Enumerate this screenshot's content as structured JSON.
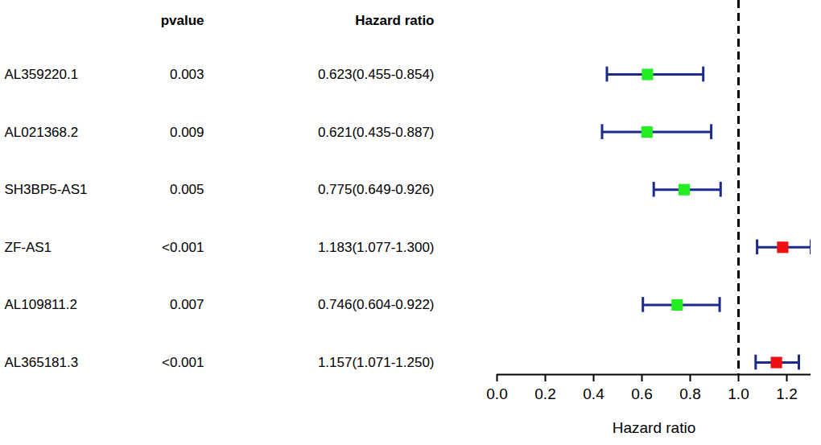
{
  "chart_data": {
    "type": "forest",
    "columns": [
      "pvalue",
      "Hazard ratio"
    ],
    "categories": [
      "AL359220.1",
      "AL021368.2",
      "SH3BP5-AS1",
      "ZF-AS1",
      "AL109811.2",
      "AL365181.3"
    ],
    "p_values": [
      "0.003",
      "0.009",
      "0.005",
      "<0.001",
      "0.007",
      "<0.001"
    ],
    "values": [
      0.623,
      0.621,
      0.775,
      1.183,
      0.746,
      1.157
    ],
    "lower": [
      0.455,
      0.435,
      0.649,
      1.077,
      0.604,
      1.071
    ],
    "upper": [
      0.854,
      0.887,
      0.926,
      1.3,
      0.922,
      1.25
    ],
    "value_labels": [
      "0.623(0.455-0.854)",
      "0.621(0.435-0.887)",
      "0.775(0.649-0.926)",
      "1.183(1.077-1.300)",
      "0.746(0.604-0.922)",
      "1.157(1.071-1.250)"
    ],
    "colors": [
      "#22ee22",
      "#22ee22",
      "#22ee22",
      "#ee1111",
      "#22ee22",
      "#ee1111"
    ],
    "marker": "square",
    "xlabel": "Hazard ratio",
    "xlim": [
      0,
      1.3
    ],
    "xticks": [
      {
        "value": 0,
        "label": "0.0"
      },
      {
        "value": 0.2,
        "label": "0.2"
      },
      {
        "value": 0.4,
        "label": "0.4"
      },
      {
        "value": 0.6,
        "label": "0.6"
      },
      {
        "value": 0.8,
        "label": "0.8"
      },
      {
        "value": 1,
        "label": "1.0"
      },
      {
        "value": 1.2,
        "label": "1.2"
      }
    ],
    "reference_line": 1
  }
}
